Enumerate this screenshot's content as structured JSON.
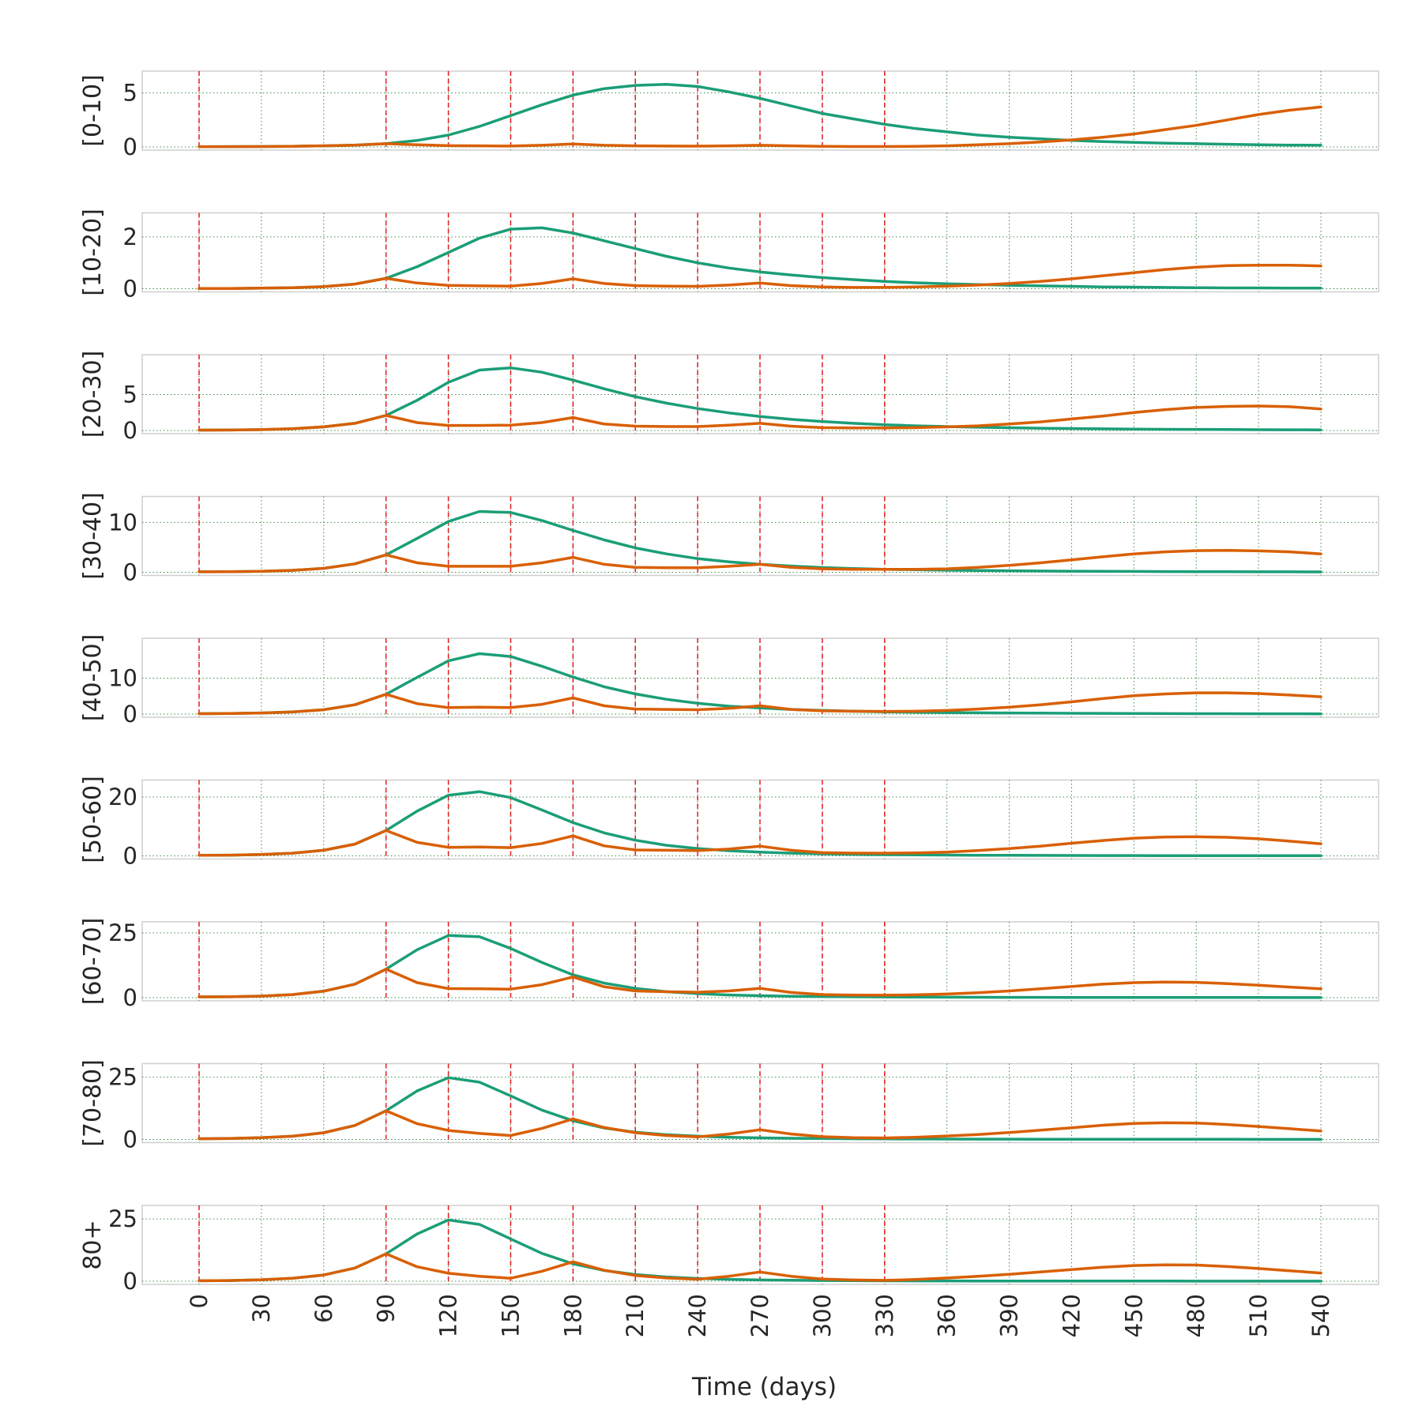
{
  "chart_data": {
    "type": "line",
    "layout": "small-multiples-vertical",
    "xlabel": "Time (days)",
    "xlim": [
      0,
      540
    ],
    "xticks": [
      0,
      30,
      60,
      90,
      120,
      150,
      180,
      210,
      240,
      270,
      300,
      330,
      360,
      390,
      420,
      450,
      480,
      510,
      540
    ],
    "x": [
      0,
      15,
      30,
      45,
      60,
      75,
      90,
      105,
      120,
      135,
      150,
      165,
      180,
      195,
      210,
      225,
      240,
      255,
      270,
      285,
      300,
      315,
      330,
      345,
      360,
      375,
      390,
      405,
      420,
      435,
      450,
      465,
      480,
      495,
      510,
      525,
      540
    ],
    "vlines_red_dashed": [
      0,
      90,
      120,
      150,
      180,
      210,
      240,
      270,
      300,
      330
    ],
    "grid": "dotted-green",
    "series_colors": [
      "#1b9e77",
      "#d95f02"
    ],
    "panels": [
      {
        "label": "[0-10]",
        "ylim": [
          0,
          6
        ],
        "yticks": [
          0,
          5
        ],
        "series": [
          {
            "values": [
              0.02,
              0.03,
              0.04,
              0.06,
              0.1,
              0.17,
              0.3,
              0.6,
              1.1,
              1.9,
              2.9,
              3.9,
              4.8,
              5.4,
              5.7,
              5.8,
              5.6,
              5.1,
              4.5,
              3.8,
              3.1,
              2.6,
              2.1,
              1.7,
              1.4,
              1.1,
              0.9,
              0.75,
              0.6,
              0.5,
              0.42,
              0.35,
              0.3,
              0.25,
              0.2,
              0.17,
              0.15
            ]
          },
          {
            "values": [
              0.02,
              0.03,
              0.04,
              0.06,
              0.1,
              0.17,
              0.3,
              0.2,
              0.12,
              0.1,
              0.08,
              0.15,
              0.28,
              0.15,
              0.1,
              0.08,
              0.07,
              0.1,
              0.15,
              0.1,
              0.05,
              0.04,
              0.04,
              0.06,
              0.1,
              0.2,
              0.3,
              0.45,
              0.65,
              0.9,
              1.2,
              1.6,
              2.0,
              2.5,
              3.0,
              3.4,
              3.7
            ]
          }
        ]
      },
      {
        "label": "[10-20]",
        "ylim": [
          0,
          2.5
        ],
        "yticks": [
          0,
          2
        ],
        "series": [
          {
            "values": [
              0.01,
              0.01,
              0.02,
              0.04,
              0.08,
              0.18,
              0.4,
              0.85,
              1.4,
              1.95,
              2.3,
              2.35,
              2.15,
              1.85,
              1.55,
              1.25,
              1.0,
              0.8,
              0.65,
              0.53,
              0.43,
              0.35,
              0.28,
              0.23,
              0.19,
              0.16,
              0.13,
              0.11,
              0.09,
              0.07,
              0.06,
              0.05,
              0.04,
              0.03,
              0.03,
              0.02,
              0.02
            ]
          },
          {
            "values": [
              0.01,
              0.01,
              0.02,
              0.04,
              0.08,
              0.18,
              0.4,
              0.22,
              0.13,
              0.11,
              0.1,
              0.2,
              0.38,
              0.2,
              0.12,
              0.1,
              0.09,
              0.14,
              0.22,
              0.12,
              0.07,
              0.05,
              0.05,
              0.07,
              0.1,
              0.14,
              0.2,
              0.28,
              0.38,
              0.5,
              0.62,
              0.74,
              0.83,
              0.89,
              0.91,
              0.91,
              0.88
            ]
          }
        ]
      },
      {
        "label": "[20-30]",
        "ylim": [
          0,
          9
        ],
        "yticks": [
          0,
          5
        ],
        "series": [
          {
            "values": [
              0.05,
              0.07,
              0.12,
              0.25,
              0.5,
              1.0,
              2.1,
              4.2,
              6.7,
              8.4,
              8.7,
              8.1,
              7.0,
              5.8,
              4.7,
              3.8,
              3.05,
              2.45,
              1.95,
              1.55,
              1.25,
              1.0,
              0.8,
              0.65,
              0.55,
              0.45,
              0.38,
              0.32,
              0.27,
              0.23,
              0.2,
              0.17,
              0.15,
              0.13,
              0.11,
              0.1,
              0.09
            ]
          },
          {
            "values": [
              0.05,
              0.07,
              0.12,
              0.25,
              0.5,
              1.0,
              2.1,
              1.1,
              0.7,
              0.7,
              0.75,
              1.1,
              1.8,
              0.9,
              0.6,
              0.55,
              0.55,
              0.75,
              1.0,
              0.6,
              0.4,
              0.35,
              0.35,
              0.4,
              0.5,
              0.65,
              0.9,
              1.2,
              1.6,
              2.0,
              2.5,
              2.9,
              3.2,
              3.35,
              3.4,
              3.3,
              3.0
            ]
          }
        ]
      },
      {
        "label": "[30-40]",
        "ylim": [
          0,
          13
        ],
        "yticks": [
          0,
          10
        ],
        "series": [
          {
            "values": [
              0.1,
              0.12,
              0.2,
              0.4,
              0.8,
              1.7,
              3.5,
              6.8,
              10.2,
              12.2,
              12.0,
              10.4,
              8.4,
              6.5,
              4.9,
              3.7,
              2.75,
              2.1,
              1.6,
              1.25,
              0.95,
              0.75,
              0.6,
              0.5,
              0.42,
              0.35,
              0.3,
              0.26,
              0.22,
              0.19,
              0.17,
              0.15,
              0.13,
              0.11,
              0.1,
              0.09,
              0.08
            ]
          },
          {
            "values": [
              0.1,
              0.12,
              0.2,
              0.4,
              0.8,
              1.7,
              3.5,
              1.9,
              1.2,
              1.2,
              1.2,
              1.9,
              3.0,
              1.6,
              1.0,
              0.9,
              0.9,
              1.2,
              1.6,
              1.0,
              0.7,
              0.6,
              0.6,
              0.6,
              0.7,
              1.0,
              1.4,
              1.9,
              2.5,
              3.1,
              3.7,
              4.1,
              4.35,
              4.4,
              4.3,
              4.1,
              3.7
            ]
          }
        ]
      },
      {
        "label": "[40-50]",
        "ylim": [
          0,
          18
        ],
        "yticks": [
          0,
          10
        ],
        "series": [
          {
            "values": [
              0.1,
              0.15,
              0.3,
              0.6,
              1.2,
              2.6,
              5.5,
              10.2,
              14.8,
              16.8,
              16.0,
              13.3,
              10.3,
              7.6,
              5.6,
              4.1,
              3.0,
              2.2,
              1.7,
              1.3,
              1.0,
              0.8,
              0.6,
              0.5,
              0.42,
              0.36,
              0.3,
              0.26,
              0.22,
              0.19,
              0.16,
              0.14,
              0.12,
              0.1,
              0.09,
              0.08,
              0.07
            ]
          },
          {
            "values": [
              0.1,
              0.15,
              0.3,
              0.6,
              1.2,
              2.6,
              5.5,
              2.9,
              1.8,
              1.9,
              1.8,
              2.7,
              4.5,
              2.3,
              1.4,
              1.3,
              1.2,
              1.6,
              2.3,
              1.3,
              0.9,
              0.8,
              0.75,
              0.8,
              1.0,
              1.4,
              1.9,
              2.6,
              3.4,
              4.3,
              5.1,
              5.6,
              5.9,
              5.9,
              5.7,
              5.3,
              4.8
            ]
          }
        ]
      },
      {
        "label": "[50-60]",
        "ylim": [
          0,
          22
        ],
        "yticks": [
          0,
          20
        ],
        "series": [
          {
            "values": [
              0.2,
              0.25,
              0.45,
              0.9,
              1.9,
              4.0,
              8.6,
              15.2,
              20.6,
              21.8,
              19.8,
              15.6,
              11.3,
              7.8,
              5.3,
              3.6,
              2.5,
              1.75,
              1.25,
              0.9,
              0.68,
              0.52,
              0.4,
              0.32,
              0.26,
              0.22,
              0.18,
              0.15,
              0.13,
              0.11,
              0.1,
              0.09,
              0.08,
              0.07,
              0.06,
              0.05,
              0.05
            ]
          },
          {
            "values": [
              0.2,
              0.25,
              0.45,
              0.9,
              1.9,
              4.0,
              8.6,
              4.6,
              2.9,
              3.0,
              2.8,
              4.2,
              6.8,
              3.4,
              2.0,
              1.9,
              1.8,
              2.3,
              3.3,
              1.9,
              1.1,
              0.95,
              0.9,
              1.0,
              1.3,
              1.8,
              2.5,
              3.3,
              4.3,
              5.2,
              6.0,
              6.4,
              6.5,
              6.3,
              5.8,
              5.0,
              4.1
            ]
          }
        ]
      },
      {
        "label": "[60-70]",
        "ylim": [
          0,
          25
        ],
        "yticks": [
          0,
          25
        ],
        "series": [
          {
            "values": [
              0.3,
              0.35,
              0.6,
              1.2,
              2.5,
              5.2,
              11.0,
              18.5,
              24.0,
              23.5,
              19.0,
              13.6,
              8.8,
              5.6,
              3.6,
              2.3,
              1.55,
              1.05,
              0.75,
              0.55,
              0.42,
              0.33,
              0.27,
              0.22,
              0.18,
              0.15,
              0.13,
              0.11,
              0.1,
              0.09,
              0.08,
              0.07,
              0.06,
              0.05,
              0.05,
              0.04,
              0.04
            ]
          },
          {
            "values": [
              0.3,
              0.35,
              0.6,
              1.2,
              2.5,
              5.2,
              11.0,
              5.8,
              3.5,
              3.4,
              3.3,
              5.0,
              8.0,
              4.2,
              2.6,
              2.3,
              2.1,
              2.6,
              3.6,
              2.0,
              1.2,
              1.0,
              0.95,
              1.1,
              1.4,
              1.9,
              2.6,
              3.4,
              4.3,
              5.2,
              5.8,
              6.0,
              5.9,
              5.4,
              4.8,
              4.1,
              3.4
            ]
          }
        ]
      },
      {
        "label": "[70-80]",
        "ylim": [
          0,
          26
        ],
        "yticks": [
          0,
          25
        ],
        "series": [
          {
            "values": [
              0.3,
              0.4,
              0.7,
              1.3,
              2.7,
              5.6,
              11.5,
              19.5,
              24.8,
              23.0,
              17.5,
              11.8,
              7.5,
              4.6,
              2.9,
              1.9,
              1.3,
              0.9,
              0.65,
              0.48,
              0.37,
              0.29,
              0.23,
              0.19,
              0.16,
              0.14,
              0.12,
              0.1,
              0.09,
              0.08,
              0.07,
              0.06,
              0.05,
              0.05,
              0.04,
              0.04,
              0.03
            ]
          },
          {
            "values": [
              0.3,
              0.4,
              0.7,
              1.3,
              2.7,
              5.6,
              11.5,
              6.3,
              3.6,
              2.4,
              1.6,
              4.4,
              8.2,
              4.8,
              2.7,
              1.6,
              1.0,
              2.2,
              3.9,
              2.2,
              1.1,
              0.7,
              0.6,
              0.9,
              1.4,
              2.0,
              2.8,
              3.7,
              4.7,
              5.7,
              6.4,
              6.7,
              6.6,
              6.0,
              5.2,
              4.3,
              3.4
            ]
          }
        ]
      },
      {
        "label": "80+",
        "ylim": [
          0,
          26
        ],
        "yticks": [
          0,
          25
        ],
        "series": [
          {
            "values": [
              0.2,
              0.3,
              0.6,
              1.2,
              2.5,
              5.3,
              11.0,
              19.0,
              24.6,
              22.8,
              17.0,
              11.2,
              7.0,
              4.3,
              2.7,
              1.7,
              1.1,
              0.75,
              0.52,
              0.38,
              0.29,
              0.22,
              0.17,
              0.14,
              0.12,
              0.1,
              0.09,
              0.08,
              0.07,
              0.06,
              0.05,
              0.05,
              0.04,
              0.04,
              0.03,
              0.03,
              0.03
            ]
          },
          {
            "values": [
              0.2,
              0.3,
              0.6,
              1.2,
              2.5,
              5.3,
              11.0,
              5.8,
              3.2,
              2.0,
              1.2,
              4.0,
              7.8,
              4.4,
              2.3,
              1.3,
              0.8,
              2.0,
              3.7,
              2.0,
              0.9,
              0.5,
              0.35,
              0.7,
              1.3,
              2.0,
              2.8,
              3.7,
              4.7,
              5.6,
              6.3,
              6.6,
              6.5,
              5.9,
              5.1,
              4.2,
              3.3
            ]
          }
        ]
      }
    ]
  }
}
